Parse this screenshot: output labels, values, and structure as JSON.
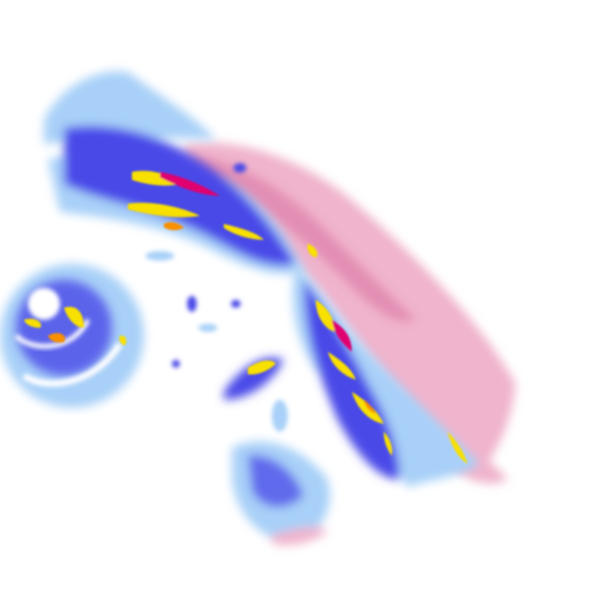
{
  "map": {
    "type": "precipitation radar composite",
    "background": "#ffffff",
    "palette": {
      "light_rain": "#a8d0f8",
      "moderate_rain": "#4a4ae8",
      "heavy_rain": "#f8e000",
      "intense_rain": "#f89000",
      "extreme_rain": "#e00070",
      "mixed_snow": "#f0b4cc",
      "mixed_heavy": "#d870a0"
    },
    "features": [
      "comma-cloud-band",
      "cyclone-spiral",
      "frontal-band",
      "southern-cell-cluster"
    ]
  }
}
